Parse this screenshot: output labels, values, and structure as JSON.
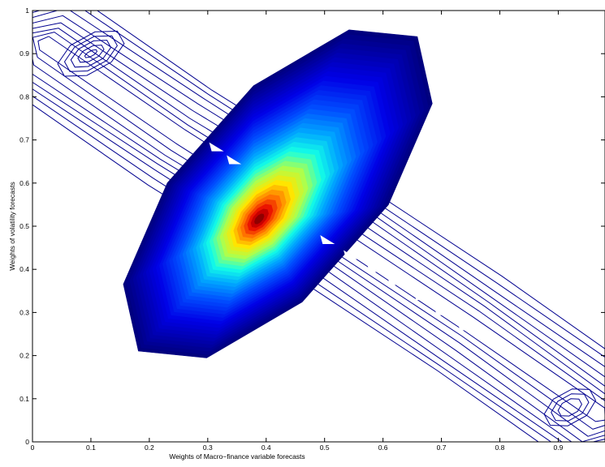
{
  "chart_data": {
    "type": "contour",
    "title": "",
    "xlabel": "Weights of Macro−finance variable forecasts",
    "ylabel": "Weights of volatility forecasts",
    "xlim": [
      0,
      0.98
    ],
    "ylim": [
      0,
      1
    ],
    "xticks": [
      {
        "value": 0,
        "label": "0"
      },
      {
        "value": 0.1,
        "label": "0.1"
      },
      {
        "value": 0.2,
        "label": "0.2"
      },
      {
        "value": 0.3,
        "label": "0.3"
      },
      {
        "value": 0.4,
        "label": "0.4"
      },
      {
        "value": 0.5,
        "label": "0.5"
      },
      {
        "value": 0.6,
        "label": "0.6"
      },
      {
        "value": 0.7,
        "label": "0.7"
      },
      {
        "value": 0.8,
        "label": "0.8"
      },
      {
        "value": 0.9,
        "label": "0.9"
      }
    ],
    "yticks": [
      {
        "value": 0,
        "label": "0"
      },
      {
        "value": 0.1,
        "label": "0.1"
      },
      {
        "value": 0.2,
        "label": "0.2"
      },
      {
        "value": 0.3,
        "label": "0.3"
      },
      {
        "value": 0.4,
        "label": "0.4"
      },
      {
        "value": 0.5,
        "label": "0.5"
      },
      {
        "value": 0.6,
        "label": "0.6"
      },
      {
        "value": 0.7,
        "label": "0.7"
      },
      {
        "value": 0.8,
        "label": "0.8"
      },
      {
        "value": 0.9,
        "label": "0.9"
      },
      {
        "value": 1,
        "label": "1"
      }
    ],
    "grid": false,
    "colormap": "jet",
    "line_contour_color": "#00008f",
    "density_peaks": [
      {
        "name": "main",
        "x": 0.43,
        "y": 0.57
      },
      {
        "name": "upper-left",
        "x": 0.1,
        "y": 0.9
      },
      {
        "name": "lower-right",
        "x": 0.92,
        "y": 0.08
      }
    ],
    "line_contours": {
      "main_band": {
        "center_line": [
          [
            0.02,
            0.92
          ],
          [
            0.25,
            0.71
          ],
          [
            0.5,
            0.5
          ],
          [
            0.75,
            0.27
          ],
          [
            0.97,
            0.06
          ]
        ],
        "half_widths": [
          0.014,
          0.026,
          0.038,
          0.05,
          0.062,
          0.074,
          0.086,
          0.098
        ]
      },
      "upper_left_island": {
        "center": [
          0.1,
          0.9
        ],
        "radii": [
          [
            0.012,
            0.006
          ],
          [
            0.025,
            0.015
          ],
          [
            0.038,
            0.025
          ],
          [
            0.05,
            0.034
          ],
          [
            0.063,
            0.043
          ]
        ]
      },
      "lower_right_island": {
        "center": [
          0.92,
          0.08
        ],
        "radii": [
          [
            0.022,
            0.018
          ],
          [
            0.035,
            0.028
          ],
          [
            0.048,
            0.038
          ]
        ]
      }
    },
    "filled_region": {
      "center": [
        0.42,
        0.575
      ],
      "axis_direction": [
        0.62,
        -0.7
      ],
      "half_length": 0.72,
      "half_width": 0.18,
      "outer_color": "#00007f",
      "peak_color": "#8f0000"
    },
    "gaps": [
      {
        "x": 0.315,
        "y": 0.685
      },
      {
        "x": 0.345,
        "y": 0.655
      },
      {
        "x": 0.505,
        "y": 0.47
      },
      {
        "x": 0.545,
        "y": 0.435
      },
      {
        "x": 0.585,
        "y": 0.405
      },
      {
        "x": 0.62,
        "y": 0.375
      },
      {
        "x": 0.665,
        "y": 0.34
      },
      {
        "x": 0.7,
        "y": 0.305
      },
      {
        "x": 0.74,
        "y": 0.27
      }
    ]
  }
}
